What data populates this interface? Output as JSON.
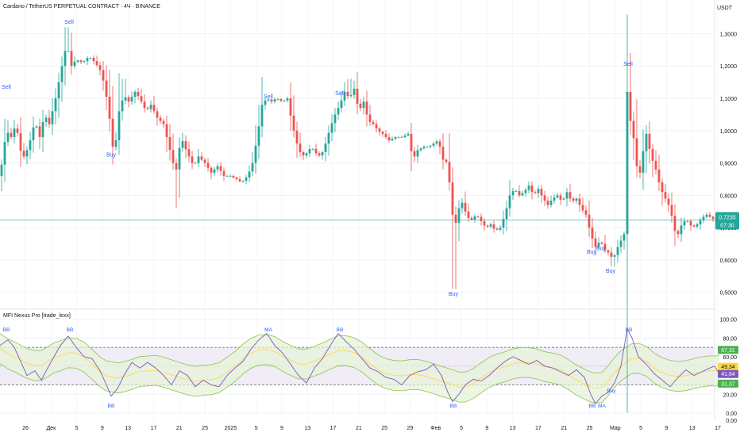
{
  "header": {
    "title": "Cardano / TetherUS PERPETUAL CONTRACT · 4Ч · BINANCE",
    "currency": "USDT"
  },
  "indicator": {
    "title": "MFI Nexus Pro [trade_lexx]"
  },
  "price_label": {
    "value": "0,7235",
    "timer": "07:30"
  },
  "chart_data": [
    {
      "type": "candlestick",
      "title": "Cardano / TetherUS PERPETUAL CONTRACT · 4Ч · BINANCE",
      "ylabel": "USDT",
      "y_ticks": [
        "1,3000",
        "1,2000",
        "1,1000",
        "1,0000",
        "0,9000",
        "0,8000",
        "0,7000",
        "0,6000",
        "0,5000"
      ],
      "y_tick_values": [
        1.3,
        1.2,
        1.1,
        1.0,
        0.9,
        0.8,
        0.7,
        0.6,
        0.5
      ],
      "ylim": [
        0.46,
        1.36
      ],
      "x_ticks": [
        "26",
        "Дек",
        "5",
        "9",
        "13",
        "17",
        "21",
        "25",
        "2025",
        "5",
        "9",
        "13",
        "17",
        "21",
        "25",
        "29",
        "Фев",
        "5",
        "9",
        "13",
        "17",
        "21",
        "25",
        "Мар",
        "5",
        "9",
        "13",
        "17"
      ],
      "close_path": [
        [
          0,
          0.86
        ],
        [
          8,
          1.0
        ],
        [
          14,
          0.98
        ],
        [
          20,
          1.02
        ],
        [
          28,
          0.91
        ],
        [
          36,
          0.95
        ],
        [
          44,
          1.03
        ],
        [
          50,
          0.98
        ],
        [
          56,
          1.05
        ],
        [
          62,
          1.02
        ],
        [
          70,
          1.1
        ],
        [
          78,
          1.2
        ],
        [
          84,
          1.27
        ],
        [
          90,
          1.2
        ],
        [
          96,
          1.22
        ],
        [
          104,
          1.21
        ],
        [
          112,
          1.23
        ],
        [
          120,
          1.21
        ],
        [
          128,
          1.18
        ],
        [
          136,
          1.08
        ],
        [
          142,
          0.95
        ],
        [
          146,
          0.97
        ],
        [
          150,
          1.06
        ],
        [
          156,
          1.11
        ],
        [
          162,
          1.09
        ],
        [
          170,
          1.12
        ],
        [
          176,
          1.1
        ],
        [
          184,
          1.06
        ],
        [
          190,
          1.08
        ],
        [
          198,
          1.04
        ],
        [
          206,
          1.02
        ],
        [
          212,
          0.96
        ],
        [
          218,
          0.9
        ],
        [
          222,
          0.88
        ],
        [
          228,
          0.98
        ],
        [
          236,
          0.93
        ],
        [
          244,
          0.89
        ],
        [
          250,
          0.92
        ],
        [
          258,
          0.9
        ],
        [
          266,
          0.87
        ],
        [
          274,
          0.89
        ],
        [
          282,
          0.86
        ],
        [
          290,
          0.86
        ],
        [
          298,
          0.85
        ],
        [
          304,
          0.84
        ],
        [
          312,
          0.86
        ],
        [
          318,
          0.9
        ],
        [
          324,
          0.98
        ],
        [
          330,
          1.08
        ],
        [
          336,
          1.1
        ],
        [
          342,
          1.09
        ],
        [
          348,
          1.1
        ],
        [
          356,
          1.09
        ],
        [
          362,
          1.1
        ],
        [
          368,
          1.02
        ],
        [
          374,
          0.96
        ],
        [
          380,
          0.92
        ],
        [
          386,
          0.93
        ],
        [
          392,
          0.95
        ],
        [
          398,
          0.93
        ],
        [
          404,
          0.92
        ],
        [
          410,
          0.96
        ],
        [
          416,
          1.01
        ],
        [
          422,
          1.05
        ],
        [
          428,
          1.08
        ],
        [
          434,
          1.12
        ],
        [
          440,
          1.1
        ],
        [
          446,
          1.13
        ],
        [
          452,
          1.06
        ],
        [
          458,
          1.09
        ],
        [
          464,
          1.03
        ],
        [
          470,
          1.02
        ],
        [
          476,
          1.0
        ],
        [
          482,
          0.99
        ],
        [
          490,
          0.97
        ],
        [
          498,
          0.98
        ],
        [
          506,
          0.98
        ],
        [
          514,
          0.99
        ],
        [
          520,
          0.91
        ],
        [
          526,
          0.94
        ],
        [
          534,
          0.95
        ],
        [
          540,
          0.95
        ],
        [
          546,
          0.96
        ],
        [
          552,
          0.97
        ],
        [
          558,
          0.91
        ],
        [
          564,
          0.9
        ],
        [
          568,
          0.78
        ],
        [
          572,
          0.7
        ],
        [
          576,
          0.73
        ],
        [
          580,
          0.79
        ],
        [
          586,
          0.75
        ],
        [
          592,
          0.72
        ],
        [
          600,
          0.74
        ],
        [
          606,
          0.72
        ],
        [
          612,
          0.7
        ],
        [
          618,
          0.71
        ],
        [
          624,
          0.69
        ],
        [
          630,
          0.7
        ],
        [
          636,
          0.74
        ],
        [
          642,
          0.8
        ],
        [
          648,
          0.82
        ],
        [
          654,
          0.8
        ],
        [
          660,
          0.81
        ],
        [
          666,
          0.83
        ],
        [
          672,
          0.8
        ],
        [
          678,
          0.82
        ],
        [
          684,
          0.79
        ],
        [
          690,
          0.77
        ],
        [
          696,
          0.79
        ],
        [
          702,
          0.8
        ],
        [
          708,
          0.78
        ],
        [
          714,
          0.81
        ],
        [
          720,
          0.78
        ],
        [
          726,
          0.79
        ],
        [
          732,
          0.76
        ],
        [
          738,
          0.74
        ],
        [
          744,
          0.68
        ],
        [
          750,
          0.64
        ],
        [
          756,
          0.66
        ],
        [
          762,
          0.63
        ],
        [
          768,
          0.62
        ],
        [
          772,
          0.6
        ],
        [
          776,
          0.63
        ],
        [
          782,
          0.66
        ],
        [
          786,
          0.68
        ],
        [
          790,
          1.12
        ],
        [
          794,
          1.03
        ],
        [
          800,
          0.95
        ],
        [
          804,
          0.83
        ],
        [
          808,
          0.91
        ],
        [
          814,
          0.99
        ],
        [
          820,
          0.92
        ],
        [
          826,
          0.88
        ],
        [
          832,
          0.82
        ],
        [
          838,
          0.79
        ],
        [
          844,
          0.76
        ],
        [
          850,
          0.69
        ],
        [
          854,
          0.68
        ],
        [
          860,
          0.72
        ],
        [
          866,
          0.72
        ],
        [
          872,
          0.7
        ],
        [
          878,
          0.71
        ],
        [
          884,
          0.73
        ],
        [
          890,
          0.74
        ],
        [
          896,
          0.73
        ],
        [
          902,
          0.72
        ],
        [
          906,
          0.7235
        ]
      ],
      "wick_highs": [
        [
          84,
          1.32
        ],
        [
          156,
          1.16
        ],
        [
          330,
          1.12
        ],
        [
          440,
          1.16
        ],
        [
          790,
          1.18
        ]
      ],
      "wick_lows": [
        [
          222,
          0.76
        ],
        [
          572,
          0.51
        ],
        [
          772,
          0.58
        ]
      ],
      "last_price": 0.7235,
      "annotations": [
        {
          "label": "Sell",
          "x": 8,
          "y": 1.13
        },
        {
          "label": "Sell",
          "x": 87,
          "y": 1.33
        },
        {
          "label": "Buy",
          "x": 140,
          "y": 0.92
        },
        {
          "label": "Sell",
          "x": 338,
          "y": 1.1
        },
        {
          "label": "Sell",
          "x": 428,
          "y": 1.11
        },
        {
          "label": "Buy",
          "x": 571,
          "y": 0.49
        },
        {
          "label": "Buy",
          "x": 745,
          "y": 0.62
        },
        {
          "label": "Buy",
          "x": 757,
          "y": 0.63
        },
        {
          "label": "Buy",
          "x": 769,
          "y": 0.56
        },
        {
          "label": "Sell",
          "x": 791,
          "y": 1.2
        }
      ],
      "grid": true
    },
    {
      "type": "line",
      "title": "MFI Nexus Pro [trade_lexx]",
      "y_ticks": [
        "100,00",
        "80,00",
        "60,00",
        "40,00",
        "20,00",
        "0,00"
      ],
      "y_tick_values": [
        100,
        80,
        60,
        40,
        20,
        0
      ],
      "extra_tick": "0,00",
      "ylim": [
        -6,
        104
      ],
      "levels": [
        70,
        50,
        30
      ],
      "series": [
        {
          "values": [
            [
              0,
              72
            ],
            [
              10,
              78
            ],
            [
              18,
              70
            ],
            [
              26,
              55
            ],
            [
              34,
              40
            ],
            [
              44,
              45
            ],
            [
              52,
              35
            ],
            [
              60,
              48
            ],
            [
              68,
              60
            ],
            [
              76,
              72
            ],
            [
              86,
              82
            ],
            [
              96,
              70
            ],
            [
              106,
              60
            ],
            [
              116,
              58
            ],
            [
              126,
              45
            ],
            [
              134,
              30
            ],
            [
              140,
              18
            ],
            [
              148,
              26
            ],
            [
              156,
              40
            ],
            [
              166,
              54
            ],
            [
              176,
              48
            ],
            [
              186,
              54
            ],
            [
              196,
              48
            ],
            [
              206,
              40
            ],
            [
              216,
              30
            ],
            [
              226,
              45
            ],
            [
              236,
              40
            ],
            [
              246,
              28
            ],
            [
              256,
              35
            ],
            [
              266,
              30
            ],
            [
              276,
              28
            ],
            [
              286,
              40
            ],
            [
              296,
              48
            ],
            [
              306,
              55
            ],
            [
              316,
              68
            ],
            [
              326,
              78
            ],
            [
              336,
              85
            ],
            [
              346,
              72
            ],
            [
              356,
              64
            ],
            [
              366,
              52
            ],
            [
              376,
              40
            ],
            [
              386,
              32
            ],
            [
              396,
              48
            ],
            [
              406,
              58
            ],
            [
              416,
              72
            ],
            [
              426,
              85
            ],
            [
              436,
              76
            ],
            [
              446,
              68
            ],
            [
              456,
              58
            ],
            [
              466,
              48
            ],
            [
              476,
              44
            ],
            [
              486,
              38
            ],
            [
              496,
              36
            ],
            [
              506,
              30
            ],
            [
              516,
              40
            ],
            [
              526,
              44
            ],
            [
              536,
              46
            ],
            [
              546,
              52
            ],
            [
              556,
              40
            ],
            [
              564,
              22
            ],
            [
              570,
              12
            ],
            [
              578,
              20
            ],
            [
              586,
              30
            ],
            [
              596,
              36
            ],
            [
              606,
              34
            ],
            [
              616,
              40
            ],
            [
              626,
              48
            ],
            [
              636,
              55
            ],
            [
              646,
              60
            ],
            [
              656,
              56
            ],
            [
              666,
              52
            ],
            [
              676,
              56
            ],
            [
              686,
              50
            ],
            [
              696,
              48
            ],
            [
              706,
              44
            ],
            [
              716,
              40
            ],
            [
              726,
              46
            ],
            [
              736,
              38
            ],
            [
              744,
              20
            ],
            [
              750,
              10
            ],
            [
              758,
              18
            ],
            [
              766,
              22
            ],
            [
              774,
              32
            ],
            [
              782,
              50
            ],
            [
              790,
              90
            ],
            [
              796,
              80
            ],
            [
              804,
              60
            ],
            [
              814,
              52
            ],
            [
              824,
              42
            ],
            [
              834,
              35
            ],
            [
              844,
              28
            ],
            [
              854,
              38
            ],
            [
              864,
              46
            ],
            [
              874,
              40
            ],
            [
              884,
              44
            ],
            [
              894,
              48
            ],
            [
              900,
              50
            ],
            [
              906,
              41.64
            ]
          ]
        }
      ],
      "value_labels": [
        {
          "text": "67,31",
          "value": 67.31,
          "color": "#4caf50"
        },
        {
          "text": "49,34",
          "value": 49.34,
          "color": "#ffd740"
        },
        {
          "text": "41,64",
          "value": 41.64,
          "color": "#7e57c2"
        },
        {
          "text": "31,37",
          "value": 31.37,
          "color": "#4caf50"
        }
      ],
      "annotations": [
        {
          "label": "BB",
          "x": 8,
          "y": 87
        },
        {
          "label": "BB",
          "x": 88,
          "y": 87
        },
        {
          "label": "BB",
          "x": 140,
          "y": 6
        },
        {
          "label": "MA",
          "x": 338,
          "y": 87
        },
        {
          "label": "BB",
          "x": 428,
          "y": 87
        },
        {
          "label": "BB",
          "x": 571,
          "y": 6
        },
        {
          "label": "BB",
          "x": 746,
          "y": 6
        },
        {
          "label": "MA",
          "x": 758,
          "y": 6
        },
        {
          "label": "Buy",
          "x": 770,
          "y": 22
        },
        {
          "label": "BB",
          "x": 792,
          "y": 87
        }
      ]
    }
  ],
  "colors": {
    "up": "#26a69a",
    "down": "#ef5350",
    "signal": "#2962ff",
    "mfi_line": "#7e57c2",
    "band": "#8bc34a",
    "band_fill": "#e6f2d5",
    "zone_fill": "#f0edf7"
  }
}
